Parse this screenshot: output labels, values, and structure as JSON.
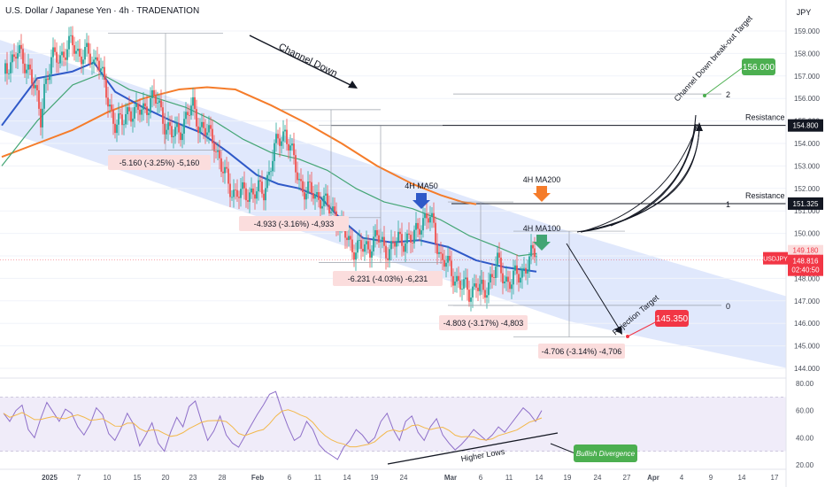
{
  "header": {
    "title": "U.S. Dollar / Japanese Yen · 4h · TRADENATION"
  },
  "currency_label": "JPY",
  "colors": {
    "channel_fill": "#dbe4fb",
    "candle_up": "#26a69a",
    "candle_down": "#ef5350",
    "ma50": "#2f59c8",
    "ma100": "#43a574",
    "ma200": "#f57c2a",
    "rsi": "#8e6fc9",
    "rsi_ma": "#f2b84b",
    "rsi_band": "#ece7f8",
    "red_box": "#fbdddd",
    "red_text": "#c62828",
    "green_tag": "#4caf50",
    "red_tag": "#f23645"
  },
  "chart_data": {
    "type": "candlestick",
    "symbol": "USDJPY",
    "timeframe": "4h",
    "price_axis": {
      "min": 143,
      "max": 159,
      "ticks": [
        "159.000",
        "158.000",
        "157.000",
        "156.000",
        "155.000",
        "154.000",
        "153.000",
        "152.000",
        "151.000",
        "150.000",
        "149.000",
        "148.000",
        "147.000",
        "146.000",
        "145.000",
        "144.000"
      ]
    },
    "time_axis": {
      "ticks": [
        "2025",
        "7",
        "10",
        "15",
        "20",
        "23",
        "28",
        "Feb",
        "6",
        "11",
        "14",
        "19",
        "24",
        "Mar",
        "6",
        "11",
        "14",
        "19",
        "24",
        "27",
        "Apr",
        "4",
        "9",
        "14",
        "17"
      ]
    },
    "close_path": [
      [
        0,
        157.1
      ],
      [
        2,
        157.6
      ],
      [
        4,
        158.0
      ],
      [
        6,
        157.7
      ],
      [
        8,
        157.3
      ],
      [
        10,
        155.8
      ],
      [
        11,
        155.1
      ],
      [
        12,
        156.6
      ],
      [
        14,
        157.6
      ],
      [
        16,
        157.9
      ],
      [
        18,
        158.1
      ],
      [
        20,
        158.4
      ],
      [
        22,
        158.0
      ],
      [
        24,
        157.9
      ],
      [
        26,
        157.6
      ],
      [
        27,
        158.1
      ],
      [
        28,
        157.2
      ],
      [
        30,
        155.8
      ],
      [
        32,
        155.0
      ],
      [
        34,
        154.8
      ],
      [
        36,
        155.6
      ],
      [
        38,
        155.3
      ],
      [
        40,
        155.5
      ],
      [
        42,
        156.0
      ],
      [
        44,
        155.8
      ],
      [
        46,
        155.0
      ],
      [
        48,
        154.3
      ],
      [
        50,
        154.6
      ],
      [
        52,
        155.1
      ],
      [
        54,
        155.6
      ],
      [
        56,
        154.8
      ],
      [
        58,
        154.4
      ],
      [
        60,
        154.2
      ],
      [
        62,
        152.9
      ],
      [
        64,
        152.2
      ],
      [
        66,
        151.8
      ],
      [
        68,
        151.7
      ],
      [
        70,
        151.9
      ],
      [
        72,
        151.8
      ],
      [
        74,
        151.9
      ],
      [
        76,
        153.1
      ],
      [
        78,
        154.1
      ],
      [
        80,
        154.6
      ],
      [
        82,
        153.4
      ],
      [
        84,
        152.4
      ],
      [
        86,
        151.8
      ],
      [
        88,
        151.8
      ],
      [
        90,
        151.6
      ],
      [
        92,
        151.1
      ],
      [
        94,
        151.0
      ],
      [
        96,
        150.1
      ],
      [
        98,
        149.7
      ],
      [
        100,
        149.3
      ],
      [
        102,
        149.3
      ],
      [
        104,
        149.5
      ],
      [
        106,
        149.8
      ],
      [
        108,
        149.4
      ],
      [
        110,
        149.3
      ],
      [
        112,
        149.7
      ],
      [
        114,
        149.8
      ],
      [
        116,
        149.6
      ],
      [
        118,
        150.5
      ],
      [
        120,
        150.7
      ],
      [
        122,
        150.3
      ],
      [
        124,
        148.9
      ],
      [
        126,
        148.5
      ],
      [
        128,
        148.1
      ],
      [
        130,
        147.6
      ],
      [
        132,
        147.4
      ],
      [
        134,
        147.8
      ],
      [
        136,
        147.2
      ],
      [
        138,
        148.1
      ],
      [
        140,
        148.6
      ],
      [
        142,
        148.0
      ],
      [
        144,
        147.9
      ],
      [
        146,
        148.1
      ],
      [
        148,
        148.6
      ],
      [
        150,
        149.0
      ],
      [
        151,
        149.2
      ]
    ],
    "moving_averages": {
      "ma50_points": [
        [
          0,
          154.8
        ],
        [
          10,
          156.9
        ],
        [
          20,
          157.2
        ],
        [
          26,
          157.6
        ],
        [
          32,
          156.3
        ],
        [
          40,
          155.6
        ],
        [
          48,
          155.0
        ],
        [
          56,
          154.5
        ],
        [
          64,
          153.6
        ],
        [
          72,
          152.6
        ],
        [
          78,
          152.2
        ],
        [
          84,
          152.0
        ],
        [
          90,
          151.6
        ],
        [
          96,
          150.6
        ],
        [
          102,
          149.8
        ],
        [
          110,
          149.6
        ],
        [
          118,
          149.7
        ],
        [
          126,
          149.4
        ],
        [
          134,
          148.8
        ],
        [
          142,
          148.5
        ],
        [
          151,
          148.3
        ]
      ],
      "ma100_points": [
        [
          0,
          153.0
        ],
        [
          10,
          155.0
        ],
        [
          20,
          156.6
        ],
        [
          28,
          157.1
        ],
        [
          36,
          156.4
        ],
        [
          44,
          156.0
        ],
        [
          52,
          155.6
        ],
        [
          60,
          155.0
        ],
        [
          68,
          154.2
        ],
        [
          76,
          153.6
        ],
        [
          84,
          153.3
        ],
        [
          92,
          152.8
        ],
        [
          100,
          152.0
        ],
        [
          108,
          151.4
        ],
        [
          116,
          151.1
        ],
        [
          124,
          150.6
        ],
        [
          132,
          149.9
        ],
        [
          140,
          149.4
        ],
        [
          146,
          149.0
        ],
        [
          151,
          149.1
        ]
      ],
      "ma200_points": [
        [
          0,
          153.4
        ],
        [
          10,
          154.0
        ],
        [
          20,
          154.6
        ],
        [
          30,
          155.4
        ],
        [
          40,
          156.0
        ],
        [
          50,
          156.4
        ],
        [
          58,
          156.5
        ],
        [
          66,
          156.4
        ],
        [
          76,
          155.7
        ],
        [
          86,
          154.9
        ],
        [
          96,
          154.0
        ],
        [
          106,
          153.0
        ],
        [
          116,
          152.2
        ],
        [
          124,
          151.7
        ],
        [
          130,
          151.4
        ],
        [
          134,
          151.3
        ]
      ]
    },
    "channel": {
      "upper": [
        [
          -8,
          159.0
        ],
        [
          160,
          150.1
        ],
        [
          228,
          146.9
        ]
      ],
      "lower": [
        [
          -8,
          155.0
        ],
        [
          160,
          146.1
        ],
        [
          228,
          143.8
        ]
      ]
    },
    "levels": [
      {
        "label": "Resistance 2",
        "price": 154.8,
        "tag": "154.800"
      },
      {
        "label": "Resistance 1",
        "price": 151.325,
        "tag": "151.325"
      }
    ],
    "fib": [
      {
        "label": "2",
        "price": 156.2
      },
      {
        "label": "1",
        "price": 151.325
      },
      {
        "label": "0",
        "price": 146.8
      }
    ],
    "measurements": [
      {
        "label": "-5.160 (-3.25%) -5,160"
      },
      {
        "label": "-4.933 (-3.16%) -4,933"
      },
      {
        "label": "-6.231 (-4.03%) -6,231"
      },
      {
        "label": "-4.803 (-3.17%) -4,803"
      },
      {
        "label": "-4.706 (-3.14%) -4,706"
      }
    ],
    "price_tags": {
      "current": {
        "symbol": "USDJPY",
        "price": "148.816",
        "countdown": "02:40:50",
        "shade": "149.180"
      },
      "target_up": {
        "label": "Channel Down break-out Target",
        "price": "156.000"
      },
      "target_down": {
        "label": "Rejection Target",
        "price": "145.350"
      }
    },
    "annotations": {
      "channel_down": "Channel Down",
      "ma50": "4H MA50",
      "ma200": "4H MA200",
      "ma100": "4H MA100",
      "higher_lows": "Higher Lows",
      "bullish_divergence": "Bullish Divergence"
    },
    "rsi": {
      "axis_ticks": [
        "80.00",
        "60.00",
        "40.00",
        "20.00"
      ],
      "values": [
        58,
        52,
        60,
        64,
        46,
        40,
        54,
        66,
        59,
        52,
        61,
        58,
        48,
        42,
        50,
        62,
        57,
        43,
        38,
        47,
        58,
        50,
        34,
        42,
        51,
        36,
        30,
        44,
        55,
        48,
        63,
        67,
        52,
        38,
        45,
        56,
        42,
        36,
        33,
        41,
        49,
        57,
        64,
        72,
        74,
        60,
        48,
        38,
        41,
        52,
        46,
        35,
        30,
        27,
        24,
        33,
        38,
        46,
        42,
        36,
        40,
        52,
        58,
        46,
        38,
        52,
        56,
        44,
        38,
        48,
        54,
        42,
        36,
        31,
        35,
        40,
        46,
        42,
        38,
        42,
        48,
        44,
        50,
        56,
        62,
        58,
        52,
        60
      ]
    }
  }
}
